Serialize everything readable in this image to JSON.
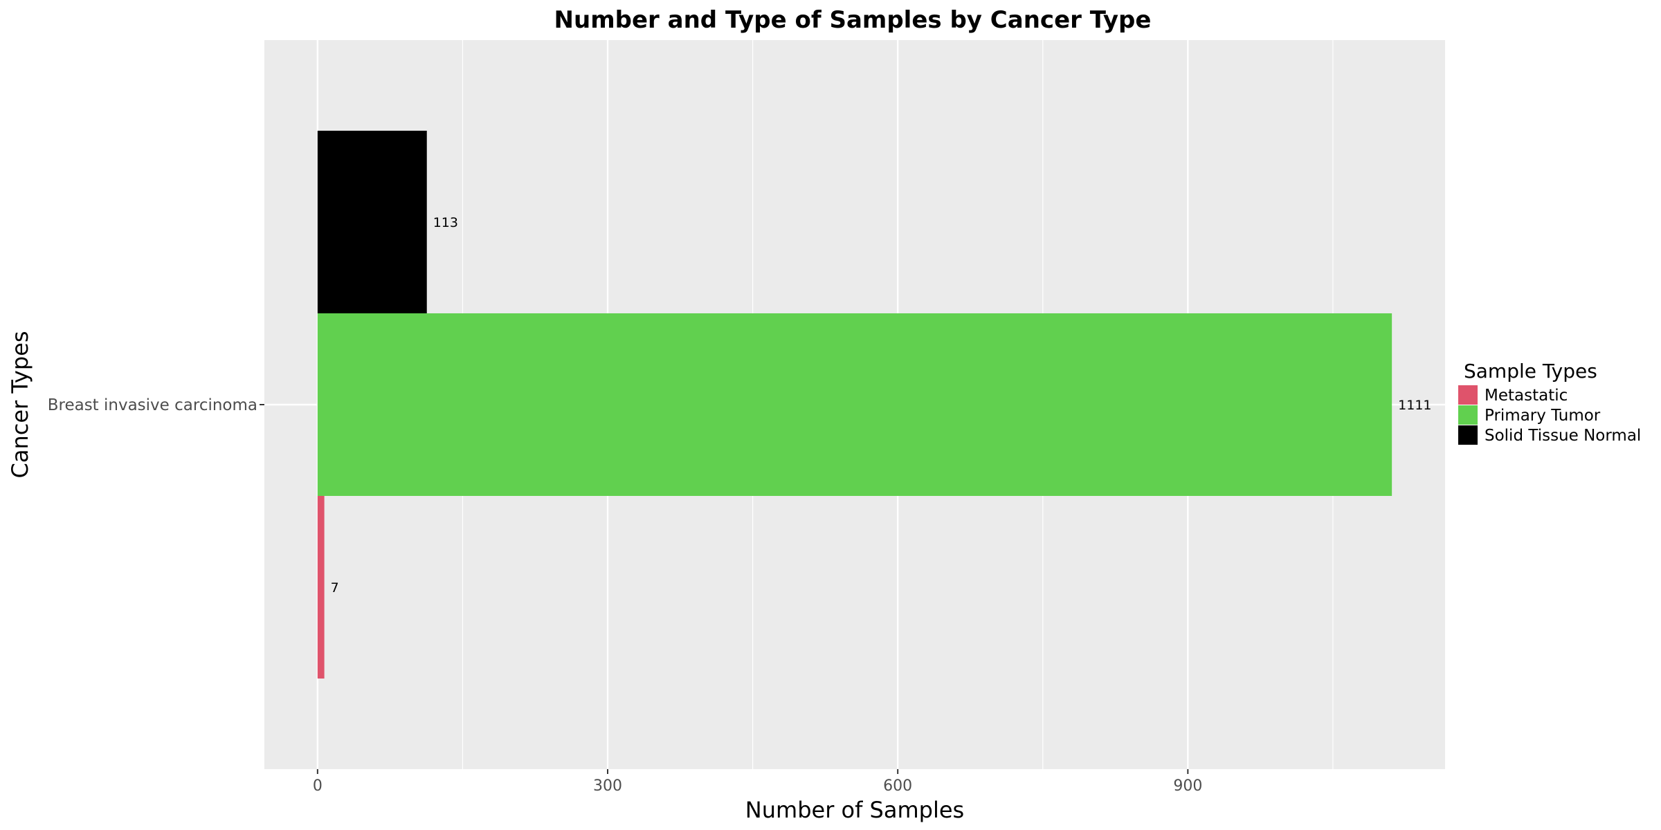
{
  "chart_data": {
    "type": "bar",
    "orientation": "horizontal",
    "title": "Number and Type of Samples by Cancer Type",
    "xlabel": "Number of Samples",
    "ylabel": "Cancer Types",
    "categories": [
      "Breast invasive carcinoma"
    ],
    "series": [
      {
        "name": "Solid Tissue Normal",
        "color": "#000000",
        "values": [
          113
        ]
      },
      {
        "name": "Primary Tumor",
        "color": "#61d04f",
        "values": [
          1111
        ]
      },
      {
        "name": "Metastatic",
        "color": "#df536b",
        "values": [
          7
        ]
      }
    ],
    "data_labels": [
      "113",
      "1111",
      "7"
    ],
    "xticks": [
      0,
      300,
      600,
      900
    ],
    "xtick_labels": [
      "0",
      "300",
      "600",
      "900"
    ],
    "xlim": [
      -55,
      1166
    ],
    "grid": true,
    "legend": {
      "title": "Sample Types",
      "position": "right",
      "items": [
        {
          "label": "Metastatic",
          "color": "#df536b"
        },
        {
          "label": "Primary Tumor",
          "color": "#61d04f"
        },
        {
          "label": "Solid Tissue Normal",
          "color": "#000000"
        }
      ]
    }
  }
}
